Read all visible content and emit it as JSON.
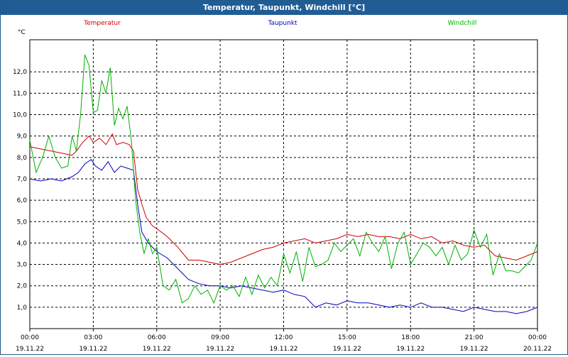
{
  "window": {
    "title": "Temperatur, Taupunkt, Windchill [°C]"
  },
  "colors": {
    "temperatur": "#d00000",
    "taupunkt": "#0000c0",
    "windchill": "#00b000",
    "titlebar": "#1f5d94",
    "grid": "#000000"
  },
  "chart_data": {
    "type": "line",
    "title": "Temperatur, Taupunkt, Windchill [°C]",
    "ylabel": "°C",
    "xlabel": "",
    "ylim": [
      0,
      13.5
    ],
    "xlim": [
      0,
      24
    ],
    "yticks": [
      1.0,
      2.0,
      3.0,
      4.0,
      5.0,
      6.0,
      7.0,
      8.0,
      9.0,
      10.0,
      11.0,
      12.0
    ],
    "ytick_labels": [
      "1,0",
      "2,0",
      "3,0",
      "4,0",
      "5,0",
      "6,0",
      "7,0",
      "8,0",
      "9,0",
      "10,0",
      "11,0",
      "12,0"
    ],
    "xticks": [
      {
        "t": 0,
        "time": "00:00",
        "date": "19.11.22"
      },
      {
        "t": 3,
        "time": "03:00",
        "date": "19.11.22"
      },
      {
        "t": 6,
        "time": "06:00",
        "date": "19.11.22"
      },
      {
        "t": 9,
        "time": "09:00",
        "date": "19.11.22"
      },
      {
        "t": 12,
        "time": "12:00",
        "date": "19.11.22"
      },
      {
        "t": 15,
        "time": "15:00",
        "date": "19.11.22"
      },
      {
        "t": 18,
        "time": "18:00",
        "date": "19.11.22"
      },
      {
        "t": 21,
        "time": "21:00",
        "date": "19.11.22"
      },
      {
        "t": 24,
        "time": "00:00",
        "date": "20.11.22"
      }
    ],
    "grid": true,
    "legend_position": "top",
    "series": [
      {
        "name": "Temperatur",
        "color": "#d00000",
        "x": [
          0,
          0.5,
          1,
          1.5,
          2,
          2.2,
          2.5,
          2.8,
          3,
          3.3,
          3.6,
          3.9,
          4.1,
          4.4,
          4.7,
          4.9,
          5.1,
          5.3,
          5.5,
          5.8,
          6.1,
          6.5,
          7,
          7.5,
          8,
          8.5,
          9,
          9.5,
          10,
          10.5,
          11,
          11.5,
          12,
          12.5,
          13,
          13.5,
          14,
          14.5,
          15,
          15.5,
          16,
          16.5,
          17,
          17.5,
          18,
          18.5,
          19,
          19.5,
          20,
          20.5,
          21,
          21.5,
          22,
          22.5,
          23,
          23.5,
          24
        ],
        "y": [
          8.5,
          8.4,
          8.3,
          8.2,
          8.1,
          8.3,
          8.7,
          9.0,
          8.7,
          8.9,
          8.6,
          9.1,
          8.6,
          8.7,
          8.6,
          8.3,
          6.5,
          5.8,
          5.2,
          4.8,
          4.6,
          4.3,
          3.8,
          3.2,
          3.2,
          3.1,
          3.0,
          3.1,
          3.3,
          3.5,
          3.7,
          3.8,
          4.0,
          4.1,
          4.2,
          4.0,
          4.1,
          4.2,
          4.4,
          4.3,
          4.4,
          4.3,
          4.3,
          4.2,
          4.4,
          4.2,
          4.3,
          4.0,
          4.1,
          3.9,
          3.8,
          3.9,
          3.4,
          3.3,
          3.2,
          3.4,
          3.6
        ]
      },
      {
        "name": "Taupunkt",
        "color": "#0000c0",
        "x": [
          0,
          0.5,
          1,
          1.5,
          2,
          2.3,
          2.6,
          2.9,
          3.1,
          3.4,
          3.7,
          4.0,
          4.3,
          4.6,
          4.9,
          5.1,
          5.3,
          5.6,
          6,
          6.5,
          7,
          7.5,
          8,
          8.5,
          9,
          9.5,
          10,
          10.5,
          11,
          11.5,
          12,
          12.5,
          13,
          13.5,
          14,
          14.5,
          15,
          15.5,
          16,
          16.5,
          17,
          17.5,
          18,
          18.5,
          19,
          19.5,
          20,
          20.5,
          21,
          21.5,
          22,
          22.5,
          23,
          23.5,
          24
        ],
        "y": [
          7.0,
          6.9,
          7.0,
          6.9,
          7.1,
          7.3,
          7.7,
          7.9,
          7.6,
          7.4,
          7.8,
          7.3,
          7.6,
          7.5,
          7.4,
          5.8,
          4.5,
          4.0,
          3.6,
          3.3,
          2.8,
          2.3,
          2.1,
          2.0,
          2.0,
          1.9,
          2.0,
          1.9,
          1.8,
          1.7,
          1.8,
          1.6,
          1.5,
          1.0,
          1.2,
          1.1,
          1.3,
          1.2,
          1.2,
          1.1,
          1.0,
          1.1,
          1.0,
          1.2,
          1.0,
          1.0,
          0.9,
          0.8,
          1.0,
          0.9,
          0.8,
          0.8,
          0.7,
          0.8,
          1.0
        ]
      },
      {
        "name": "Windchill",
        "color": "#00b000",
        "x": [
          0,
          0.3,
          0.6,
          0.9,
          1.2,
          1.5,
          1.8,
          2.0,
          2.2,
          2.4,
          2.6,
          2.8,
          3.0,
          3.2,
          3.4,
          3.6,
          3.8,
          4.0,
          4.2,
          4.4,
          4.6,
          4.8,
          5.0,
          5.2,
          5.4,
          5.6,
          5.8,
          6.0,
          6.3,
          6.6,
          6.9,
          7.2,
          7.5,
          7.8,
          8.1,
          8.4,
          8.7,
          9.0,
          9.3,
          9.6,
          9.9,
          10.2,
          10.5,
          10.8,
          11.1,
          11.4,
          11.7,
          12.0,
          12.3,
          12.6,
          12.9,
          13.2,
          13.5,
          13.8,
          14.1,
          14.4,
          14.7,
          15.0,
          15.3,
          15.6,
          15.9,
          16.2,
          16.5,
          16.8,
          17.1,
          17.4,
          17.7,
          18.0,
          18.3,
          18.6,
          18.9,
          19.2,
          19.5,
          19.8,
          20.1,
          20.4,
          20.7,
          21.0,
          21.3,
          21.6,
          21.9,
          22.2,
          22.5,
          22.8,
          23.1,
          23.4,
          23.7,
          24.0
        ],
        "y": [
          8.8,
          7.3,
          8.0,
          9.0,
          8.0,
          7.5,
          7.6,
          9.0,
          8.3,
          10.0,
          12.8,
          12.3,
          10.1,
          10.2,
          11.6,
          11.0,
          12.2,
          9.5,
          10.3,
          9.8,
          10.4,
          8.8,
          6.0,
          4.5,
          3.5,
          4.2,
          3.5,
          3.8,
          2.0,
          1.8,
          2.3,
          1.2,
          1.4,
          2.0,
          1.6,
          1.8,
          1.2,
          2.0,
          1.8,
          2.0,
          1.5,
          2.4,
          1.6,
          2.5,
          1.9,
          2.4,
          2.0,
          3.5,
          2.6,
          3.6,
          2.2,
          3.8,
          2.9,
          3.0,
          3.2,
          4.0,
          3.6,
          3.9,
          4.2,
          3.4,
          4.5,
          4.0,
          3.6,
          4.3,
          2.8,
          4.0,
          4.5,
          3.0,
          3.5,
          4.0,
          3.8,
          3.4,
          3.8,
          3.0,
          3.9,
          3.2,
          3.5,
          4.6,
          3.8,
          4.4,
          2.5,
          3.5,
          2.7,
          2.7,
          2.6,
          2.9,
          3.2,
          4.0
        ]
      }
    ]
  }
}
